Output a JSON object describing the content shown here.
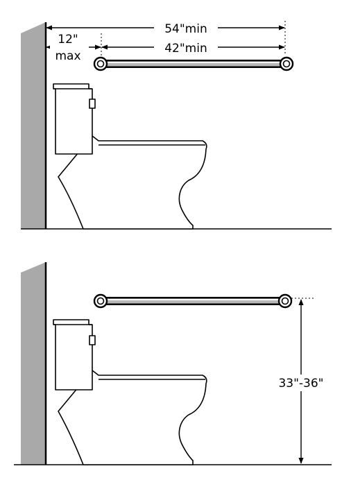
{
  "top_view": {
    "dim_overall": "54\"min",
    "dim_bar": "42\"min",
    "dim_offset_value": "12\"",
    "dim_offset_qualifier": "max"
  },
  "side_view": {
    "dim_height": "33\"-36\""
  },
  "colors": {
    "wall": "#a9a9a9",
    "grab_bar": "#b8b8b8",
    "lines": "#000000"
  }
}
